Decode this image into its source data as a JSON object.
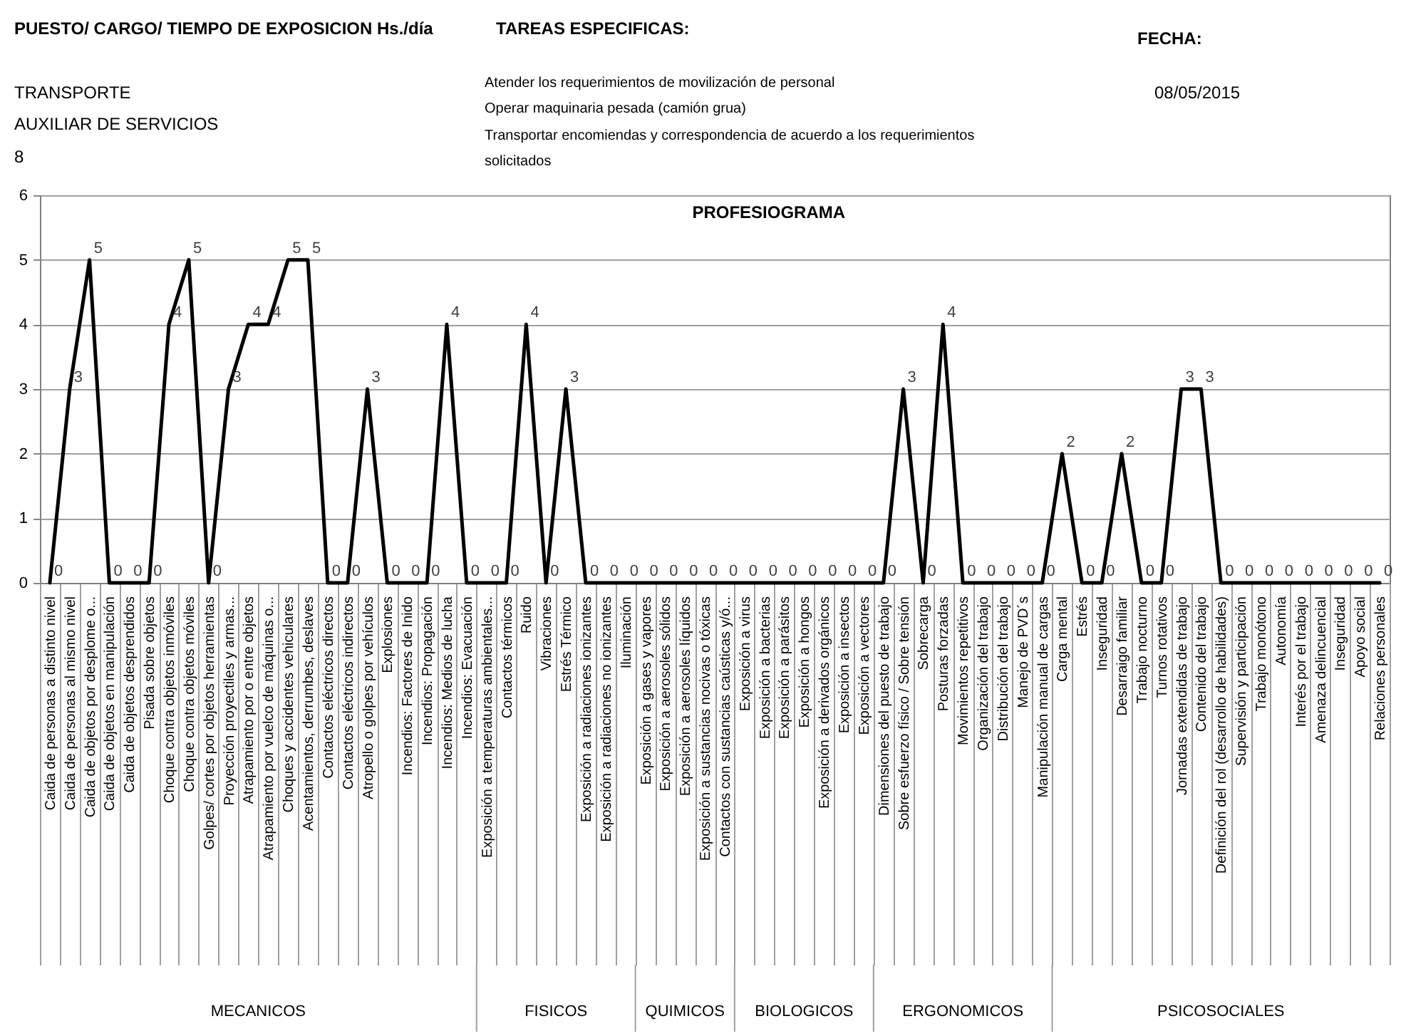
{
  "chart_data": {
    "type": "line",
    "title": "PROFESIOGRAMA",
    "categories": [
      "Caida de personas a distinto nivel",
      "Caida de personas al mismo nivel",
      "Caida de objetos por desplome o...",
      "Caida de objetos en manipulación",
      "Caida de objetos desprendidos",
      "Pisada sobre objetos",
      "Choque contra objetos inmóviles",
      "Choque contra objetos móviles",
      "Golpes/ cortes por objetos herramientas",
      "Proyección proyectiles y armas...",
      "Atrapamiento por o entre objetos",
      "Atrapamiento por vuelco de máquinas o...",
      "Choques y accidentes vehiculares",
      "Acentamientos, derrumbes, deslaves",
      "Contactos eléctricos directos",
      "Contactos eléctricos indirectos",
      "Atropello o golpes por vehículos",
      "Explosiones",
      "Incendios: Factores de Inido",
      "Incendios: Propagación",
      "Incendios: Medios de lucha",
      "Incendios: Evacuación",
      "Exposición a temperaturas ambientales...",
      "Contactos térmicos",
      "Ruido",
      "Vibraciones",
      "Estrés Térmico",
      "Exposición a radiaciones ionizantes",
      "Exposición a radiaciones no ionizantes",
      "Iluminación",
      "Exposición a gases y vapores",
      "Exposición a aerosoles sólidos",
      "Exposición a aerosoles líquidos",
      "Exposición a sustancias nocivas o tóxicas",
      "Contactos con sustancias caústicas y/ó...",
      "Exposición a virus",
      "Exposición a bacterias",
      "Exposición a parásitos",
      "Exposición a hongos",
      "Exposición a derivados orgánicos",
      "Exposición a insectos",
      "Exposición a vectores",
      "Dimensiones del puesto de trabajo",
      "Sobre esfuerzo físico / Sobre tensión",
      "Sobrecarga",
      "Posturas forzadas",
      "Movimientos repetitivos",
      "Organización del trabajo",
      "Distribución del trabajo",
      "Manejo de PVD´s",
      "Manipulación manual de cargas",
      "Carga mental",
      "Estrés",
      "Inseguridad",
      "Desarraigo familiar",
      "Trabajo nocturno",
      "Turnos rotativos",
      "Jornadas extendidas de trabajo",
      "Contenido del trabajo",
      "Definición del rol (desarrollo de habilidades)",
      "Supervisión y participación",
      "Trabajo monótono",
      "Autonomía",
      "Interés por el trabajo",
      "Amenaza delincuencial",
      "Inseguridad",
      "Apoyo social",
      "Relaciones personales"
    ],
    "series": [
      {
        "color": "#000000",
        "values": [
          0,
          3,
          5,
          0,
          0,
          0,
          4,
          5,
          0,
          3,
          4,
          4,
          5,
          5,
          0,
          0,
          3,
          0,
          0,
          0,
          4,
          0,
          0,
          0,
          4,
          0,
          3,
          0,
          0,
          0,
          0,
          0,
          0,
          0,
          0,
          0,
          0,
          0,
          0,
          0,
          0,
          0,
          0,
          3,
          0,
          4,
          0,
          0,
          0,
          0,
          0,
          2,
          0,
          0,
          2,
          0,
          0,
          3,
          3,
          0,
          0,
          0,
          0,
          0,
          0,
          0,
          0,
          0
        ]
      }
    ],
    "ylim": [
      0,
      6
    ],
    "yticks": [
      0,
      1,
      2,
      3,
      4,
      5,
      6
    ],
    "grid": "y",
    "marker": "none",
    "line_style": "solid",
    "data_labels": true,
    "annotations": [
      "PUESTO/ CARGO/ TIEMPO DE EXPOSICION Hs./día",
      "TRANSPORTE",
      "AUXILIAR DE SERVICIOS",
      "8",
      "TAREAS ESPECIFICAS:",
      "Atender los requerimientos de movilización de personal",
      "Operar maquinaria pesada (camión grua)",
      "Transportar encomiendas y correspondencia de acuerdo a los requerimientos",
      "solicitados",
      "FECHA:",
      "08/05/2015",
      "MECANICOS",
      "FISICOS",
      "QUIMICOS",
      "BIOLOGICOS",
      "ERGONOMICOS",
      "PSICOSOCIALES"
    ]
  }
}
